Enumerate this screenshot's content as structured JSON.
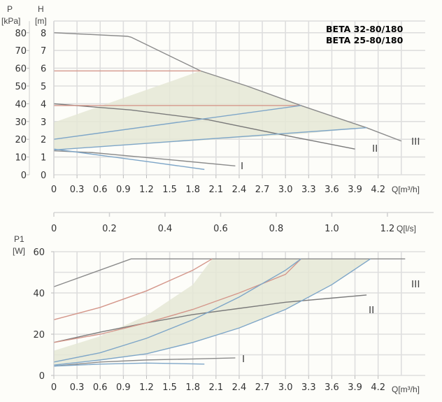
{
  "chart_data": [
    {
      "type": "line",
      "title": "",
      "models": [
        "BETA 32-80/180",
        "BETA 25-80/180"
      ],
      "xlabel": "Q[m³/h]",
      "ylabel_left_outer": "P",
      "ylabel_left_outer_unit": "[kPa]",
      "ylabel_left_inner": "H",
      "ylabel_left_inner_unit": "[m]",
      "xlim": [
        0,
        4.65
      ],
      "ylim": [
        0,
        8.5
      ],
      "x_ticks": [
        "0",
        "0.3",
        "0.6",
        "0.9",
        "1.2",
        "1.5",
        "1.8",
        "2.1",
        "2.4",
        "2.7",
        "3.0",
        "3.3",
        "3.6",
        "3.9",
        "4.2"
      ],
      "y_ticks_m": [
        "0",
        "1",
        "2",
        "3",
        "4",
        "5",
        "6",
        "7",
        "8"
      ],
      "y_ticks_kpa": [
        "0",
        "10",
        "20",
        "30",
        "40",
        "50",
        "60",
        "70",
        "80"
      ],
      "grid": true,
      "speed_labels": [
        "I",
        "II",
        "III"
      ],
      "series": [
        {
          "name": "III",
          "color": "#8a8a8a",
          "x": [
            0,
            0.95,
            1.0,
            1.9,
            2.5,
            3.2,
            4.05,
            4.5
          ],
          "y": [
            8.0,
            7.8,
            7.75,
            5.85,
            5.0,
            3.9,
            2.65,
            1.9
          ]
        },
        {
          "name": "II",
          "color": "#7a7a7a",
          "x": [
            0,
            1.0,
            2.0,
            2.9,
            3.9
          ],
          "y": [
            4.0,
            3.65,
            3.1,
            2.3,
            1.45
          ]
        },
        {
          "name": "I",
          "color": "#8a8a8a",
          "x": [
            0,
            0.5,
            1.0,
            1.5,
            2.35
          ],
          "y": [
            1.35,
            1.25,
            1.05,
            0.85,
            0.5
          ]
        },
        {
          "name": "max-head-limit",
          "color": "#d4968a",
          "x": [
            0,
            1.9
          ],
          "y": [
            5.85,
            5.85
          ]
        },
        {
          "name": "mid-head-limit",
          "color": "#d4968a",
          "x": [
            0,
            3.2
          ],
          "y": [
            3.9,
            3.9
          ]
        },
        {
          "name": "proportional-high",
          "color": "#7ea6c8",
          "x": [
            0,
            3.2
          ],
          "y": [
            2.0,
            3.9
          ]
        },
        {
          "name": "proportional-low",
          "color": "#7ea6c8",
          "x": [
            0,
            4.05
          ],
          "y": [
            1.4,
            2.65
          ]
        },
        {
          "name": "min-curve",
          "color": "#7ea6c8",
          "x": [
            0,
            0.6,
            1.2,
            1.95
          ],
          "y": [
            1.45,
            1.1,
            0.75,
            0.3
          ]
        }
      ],
      "operating_area": {
        "color": "#e5e8d6",
        "x": [
          0,
          0,
          1.9,
          2.5,
          3.2,
          4.05,
          3.2,
          0
        ],
        "y": [
          1.4,
          2.95,
          5.85,
          5.0,
          3.9,
          2.65,
          2.3,
          1.4
        ]
      }
    },
    {
      "type": "line",
      "title": "",
      "xlabel": "Q[m³/h]",
      "xlabel_secondary": "Q[l/s]",
      "ylabel": "P1",
      "ylabel_unit": "[W]",
      "xlim": [
        0,
        4.65
      ],
      "ylim": [
        0,
        60
      ],
      "x_ticks": [
        "0",
        "0.3",
        "0.6",
        "0.9",
        "1.2",
        "1.5",
        "1.8",
        "2.1",
        "2.4",
        "2.7",
        "3.0",
        "3.3",
        "3.6",
        "3.9",
        "4.2"
      ],
      "x_ticks_secondary": [
        "0",
        "0.2",
        "0.4",
        "0.6",
        "0.8",
        "1.0",
        "1.2"
      ],
      "y_ticks": [
        "0",
        "20",
        "40",
        "60"
      ],
      "grid": true,
      "speed_labels": [
        "I",
        "II",
        "III"
      ],
      "series": [
        {
          "name": "III",
          "color": "#8a8a8a",
          "x": [
            0,
            1.0,
            4.55
          ],
          "y": [
            43,
            56.5,
            56.5
          ]
        },
        {
          "name": "II",
          "color": "#7a7a7a",
          "x": [
            0,
            0.6,
            1.2,
            1.8,
            2.4,
            3.0,
            3.6,
            4.05
          ],
          "y": [
            16,
            21,
            25.5,
            29.5,
            32.5,
            35.5,
            37.5,
            39
          ]
        },
        {
          "name": "I",
          "color": "#8a8a8a",
          "x": [
            0,
            0.6,
            1.2,
            1.8,
            2.35
          ],
          "y": [
            4.5,
            6.5,
            7.5,
            8,
            8.5
          ]
        },
        {
          "name": "red-high",
          "color": "#d4968a",
          "x": [
            0,
            0.6,
            1.2,
            1.8,
            2.05
          ],
          "y": [
            27,
            33,
            41,
            51,
            56.5
          ]
        },
        {
          "name": "red-mid",
          "color": "#d4968a",
          "x": [
            0,
            0.6,
            1.2,
            1.8,
            2.4,
            3.0,
            3.2
          ],
          "y": [
            16,
            20,
            25.5,
            32,
            40,
            49,
            56.5
          ]
        },
        {
          "name": "blue-high",
          "color": "#7ea6c8",
          "x": [
            0,
            0.6,
            1.2,
            1.8,
            2.4,
            3.0,
            3.2
          ],
          "y": [
            6.5,
            11,
            18,
            27,
            38,
            51,
            56.5
          ]
        },
        {
          "name": "blue-low",
          "color": "#7ea6c8",
          "x": [
            0,
            0.6,
            1.2,
            1.8,
            2.4,
            3.0,
            3.6,
            4.1
          ],
          "y": [
            5,
            7.5,
            10.5,
            16,
            23,
            32,
            44,
            56.5
          ]
        },
        {
          "name": "min-curve",
          "color": "#7ea6c8",
          "x": [
            0,
            0.6,
            1.2,
            1.95
          ],
          "y": [
            4.5,
            5.5,
            6,
            5.5
          ]
        }
      ],
      "operating_area": {
        "color": "#e5e8d6",
        "x": [
          0,
          0,
          0.6,
          1.2,
          1.8,
          2.05,
          4.1,
          3.6,
          3.0,
          2.4,
          1.8,
          1.2,
          0.6,
          0
        ],
        "y": [
          5,
          12,
          19,
          29,
          44,
          56.5,
          56.5,
          44,
          32,
          23,
          16,
          10.5,
          7.5,
          5
        ]
      }
    }
  ]
}
